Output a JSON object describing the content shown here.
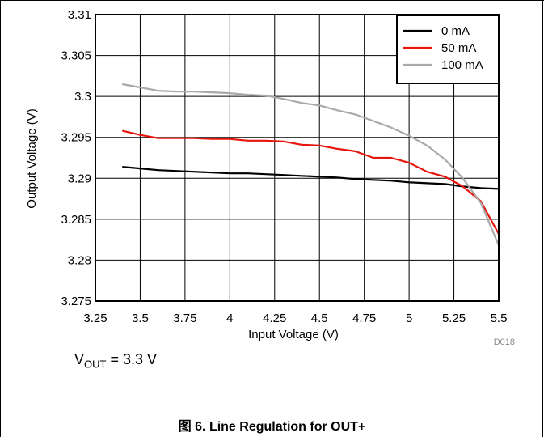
{
  "figure": {
    "caption": "图 6. Line Regulation for OUT+",
    "id_label": "D018",
    "condition": {
      "symbol": "V",
      "subscript": "OUT",
      "value": "= 3.3 V"
    }
  },
  "chart_data": {
    "type": "line",
    "title": "",
    "xlabel": "Input Voltage (V)",
    "ylabel": "Output Voltage (V)",
    "xlim": [
      3.25,
      5.5
    ],
    "ylim": [
      3.275,
      3.31
    ],
    "x_ticks": [
      "3.25",
      "3.5",
      "3.75",
      "4",
      "4.25",
      "4.5",
      "4.75",
      "5",
      "5.25",
      "5.5"
    ],
    "x_tick_values": [
      3.25,
      3.5,
      3.75,
      4,
      4.25,
      4.5,
      4.75,
      5,
      5.25,
      5.5
    ],
    "y_ticks": [
      "3.275",
      "3.28",
      "3.285",
      "3.29",
      "3.295",
      "3.3",
      "3.305",
      "3.31"
    ],
    "y_tick_values": [
      3.275,
      3.28,
      3.285,
      3.29,
      3.295,
      3.3,
      3.305,
      3.31
    ],
    "grid": true,
    "legend_position": "top-right",
    "series": [
      {
        "name": "0 mA",
        "color": "#000000",
        "x": [
          3.4,
          3.5,
          3.6,
          3.7,
          3.8,
          3.9,
          4.0,
          4.1,
          4.2,
          4.3,
          4.4,
          4.5,
          4.6,
          4.7,
          4.8,
          4.9,
          5.0,
          5.1,
          5.2,
          5.3,
          5.4,
          5.5
        ],
        "y": [
          3.2914,
          3.2912,
          3.291,
          3.2909,
          3.2908,
          3.2907,
          3.2906,
          3.2906,
          3.2905,
          3.2904,
          3.2903,
          3.2902,
          3.2901,
          3.2899,
          3.2898,
          3.2897,
          3.2895,
          3.2894,
          3.2893,
          3.289,
          3.2888,
          3.2887
        ]
      },
      {
        "name": "50 mA",
        "color": "#e8150d",
        "x": [
          3.4,
          3.5,
          3.6,
          3.7,
          3.8,
          3.9,
          4.0,
          4.1,
          4.2,
          4.3,
          4.4,
          4.5,
          4.6,
          4.7,
          4.8,
          4.9,
          5.0,
          5.1,
          5.2,
          5.3,
          5.4,
          5.5
        ],
        "y": [
          3.2958,
          3.2953,
          3.2949,
          3.2949,
          3.2949,
          3.2948,
          3.2948,
          3.2946,
          3.2946,
          3.2945,
          3.2941,
          3.294,
          3.2936,
          3.2933,
          3.2925,
          3.2925,
          3.2919,
          3.2908,
          3.2902,
          3.289,
          3.2872,
          3.2832
        ]
      },
      {
        "name": "100 mA",
        "color": "#a9a9a9",
        "x": [
          3.4,
          3.5,
          3.6,
          3.7,
          3.8,
          3.9,
          4.0,
          4.1,
          4.2,
          4.3,
          4.4,
          4.5,
          4.6,
          4.7,
          4.8,
          4.9,
          5.0,
          5.1,
          5.2,
          5.3,
          5.4,
          5.5
        ],
        "y": [
          3.3015,
          3.3011,
          3.3007,
          3.3006,
          3.3006,
          3.3005,
          3.3004,
          3.3002,
          3.3001,
          3.2997,
          3.2992,
          3.2989,
          3.2983,
          3.2978,
          3.297,
          3.2962,
          3.2952,
          3.294,
          3.2923,
          3.29,
          3.287,
          3.2818
        ]
      }
    ]
  }
}
